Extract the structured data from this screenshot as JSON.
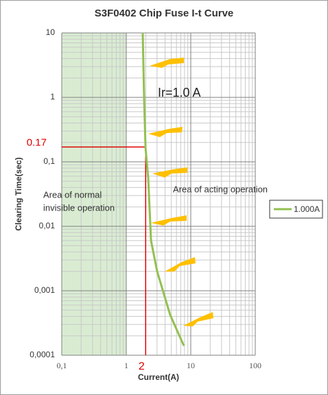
{
  "chart_data": {
    "type": "line",
    "title": "S3F0402 Chip Fuse I-t Curve",
    "x_label": "Current(A)",
    "y_label": "Clearing Time(sec)",
    "x": [
      1.8,
      1.89,
      1.99,
      2.19,
      2.42,
      3.01,
      4.8,
      7.83
    ],
    "series": [
      {
        "name": "1.000A",
        "color": "#92c050",
        "values": [
          10,
          1,
          0.163,
          0.056,
          0.006,
          0.002,
          0.00042,
          0.00014
        ]
      }
    ],
    "x_log": true,
    "y_log": true,
    "xlim": [
      0.1,
      100
    ],
    "ylim": [
      0.0001,
      10
    ],
    "xticks": [
      {
        "value": 0.1,
        "label": "0,1"
      },
      1,
      10,
      100
    ],
    "yticks": [
      {
        "value": 0.0001,
        "label": "0,0001"
      },
      {
        "value": 0.001,
        "label": "0,001"
      },
      {
        "value": 0.01,
        "label": "0,01"
      },
      {
        "value": 0.1,
        "label": "0,1"
      },
      1,
      10
    ],
    "grid": true,
    "minor_grid": true,
    "shaded_region": {
      "x": [
        0.1,
        1
      ],
      "color": "#d9ecd2"
    },
    "reference_lines": {
      "x": 2,
      "y": 0.17,
      "color": "#e00000"
    },
    "annotations": [
      "Ir=1.0 A",
      "Area of normal",
      "invisible operation",
      "Area of acting operation"
    ],
    "legend": "right"
  }
}
